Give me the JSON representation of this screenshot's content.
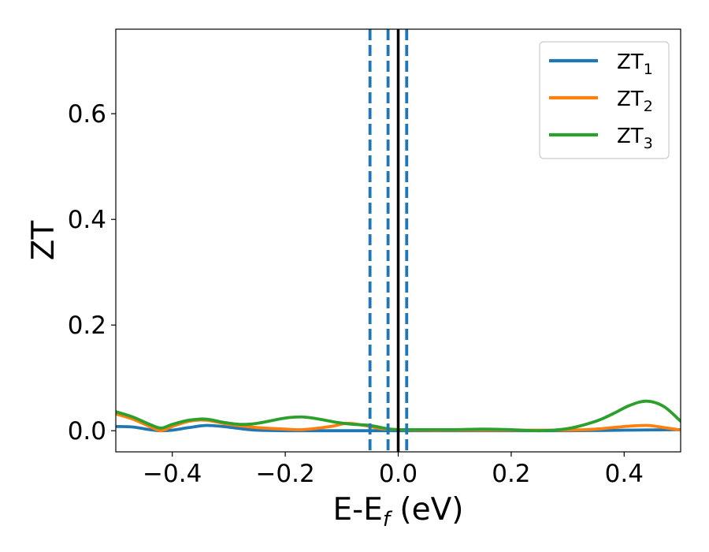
{
  "chart_data": {
    "type": "line",
    "xlabel": "E-E",
    "xlabel_sub": "f",
    "xlabel_suffix": " (eV)",
    "ylabel": "ZT",
    "xlim": [
      -0.5,
      0.5
    ],
    "ylim": [
      -0.04,
      0.76
    ],
    "x_ticks": [
      -0.4,
      -0.2,
      0.0,
      0.2,
      0.4
    ],
    "x_tick_labels": [
      "−0.4",
      "−0.2",
      "0.0",
      "0.2",
      "0.4"
    ],
    "y_ticks": [
      0.0,
      0.2,
      0.4,
      0.6
    ],
    "y_tick_labels": [
      "0.0",
      "0.2",
      "0.4",
      "0.6"
    ],
    "grid": false,
    "legend_position": "top-right",
    "series": [
      {
        "name": "ZT",
        "name_sub": "1",
        "color": "#1f77b4",
        "x": [
          -0.5,
          -0.47,
          -0.44,
          -0.42,
          -0.4,
          -0.37,
          -0.34,
          -0.31,
          -0.28,
          -0.25,
          -0.2,
          -0.15,
          -0.1,
          -0.05,
          0.0,
          0.1,
          0.2,
          0.3,
          0.4,
          0.5
        ],
        "y": [
          0.008,
          0.007,
          0.002,
          0.0,
          0.001,
          0.006,
          0.01,
          0.008,
          0.004,
          0.001,
          0.0,
          0.0,
          0.0,
          0.0,
          0.0,
          0.0,
          0.0,
          0.0,
          0.001,
          0.002
        ]
      },
      {
        "name": "ZT",
        "name_sub": "2",
        "color": "#ff7f0e",
        "x": [
          -0.5,
          -0.47,
          -0.44,
          -0.42,
          -0.4,
          -0.37,
          -0.34,
          -0.3,
          -0.25,
          -0.2,
          -0.17,
          -0.12,
          -0.09,
          -0.06,
          -0.03,
          0.0,
          0.05,
          0.1,
          0.2,
          0.3,
          0.35,
          0.4,
          0.44,
          0.47,
          0.5
        ],
        "y": [
          0.032,
          0.022,
          0.008,
          0.0,
          0.008,
          0.018,
          0.02,
          0.012,
          0.006,
          0.003,
          0.002,
          0.008,
          0.014,
          0.01,
          0.004,
          0.002,
          0.001,
          0.001,
          0.001,
          0.001,
          0.003,
          0.008,
          0.01,
          0.006,
          0.001
        ]
      },
      {
        "name": "ZT",
        "name_sub": "3",
        "color": "#2ca02c",
        "x": [
          -0.5,
          -0.47,
          -0.44,
          -0.42,
          -0.4,
          -0.37,
          -0.34,
          -0.31,
          -0.28,
          -0.25,
          -0.2,
          -0.17,
          -0.14,
          -0.11,
          -0.08,
          -0.05,
          -0.02,
          0.0,
          0.05,
          0.1,
          0.15,
          0.2,
          0.25,
          0.3,
          0.35,
          0.38,
          0.41,
          0.44,
          0.47,
          0.5
        ],
        "y": [
          0.036,
          0.026,
          0.012,
          0.005,
          0.012,
          0.02,
          0.022,
          0.016,
          0.012,
          0.014,
          0.024,
          0.026,
          0.022,
          0.016,
          0.012,
          0.01,
          0.004,
          0.002,
          0.002,
          0.002,
          0.003,
          0.002,
          0.0,
          0.004,
          0.018,
          0.032,
          0.048,
          0.056,
          0.046,
          0.018
        ]
      }
    ],
    "vlines": [
      {
        "x": -0.05,
        "style": "dashed",
        "color": "#1f77b4"
      },
      {
        "x": -0.018,
        "style": "dashed",
        "color": "#1f77b4"
      },
      {
        "x": 0.0,
        "style": "solid",
        "color": "#000000"
      },
      {
        "x": 0.015,
        "style": "dashed",
        "color": "#1f77b4"
      }
    ]
  }
}
